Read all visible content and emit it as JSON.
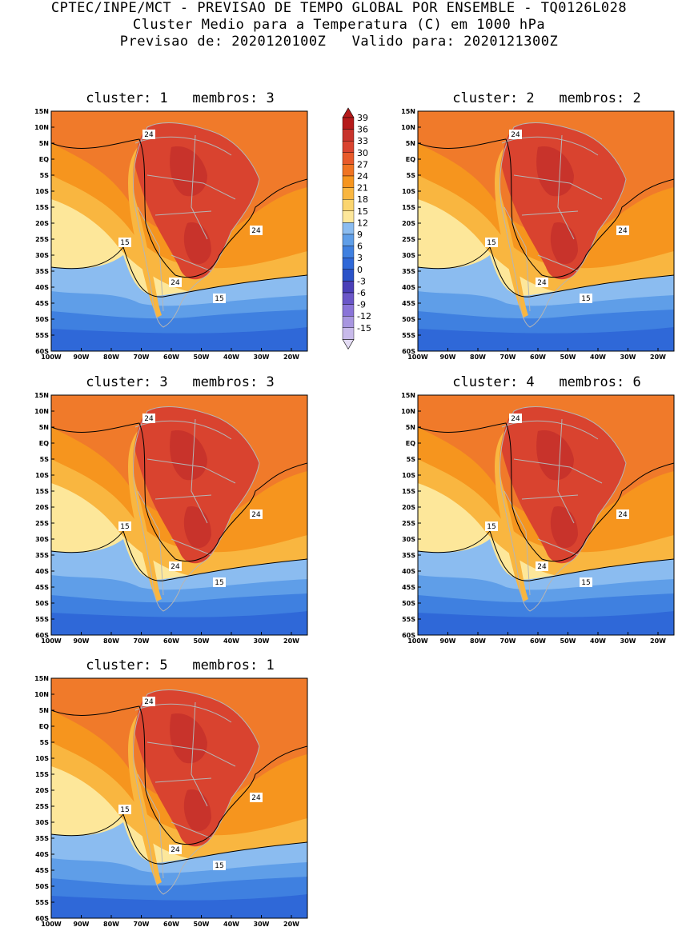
{
  "header": {
    "line1": "CPTEC/INPE/MCT - PREVISAO DE TEMPO GLOBAL POR ENSEMBLE - TQ0126L028",
    "line2": "Cluster Medio para a Temperatura (C) em 1000 hPa",
    "line3": "Previsao de: 2020120100Z   Valido para: 2020121300Z"
  },
  "axes": {
    "lat_labels": [
      "15N",
      "10N",
      "5N",
      "EQ",
      "5S",
      "10S",
      "15S",
      "20S",
      "25S",
      "30S",
      "35S",
      "40S",
      "45S",
      "50S",
      "55S",
      "60S"
    ],
    "lon_labels": [
      "100W",
      "90W",
      "80W",
      "70W",
      "60W",
      "50W",
      "40W",
      "30W",
      "20W"
    ]
  },
  "panels": [
    {
      "title": "cluster: 1   membros: 3",
      "labels": {
        "a": "24",
        "b": "24",
        "c": "15",
        "d": "24",
        "e": "15"
      }
    },
    {
      "title": "cluster: 2   membros: 2",
      "labels": {
        "a": "24",
        "b": "24",
        "c": "15",
        "d": "24",
        "e": "15"
      }
    },
    {
      "title": "cluster: 3   membros: 3",
      "labels": {
        "a": "24",
        "b": "24",
        "c": "15",
        "d": "24",
        "e": "15"
      }
    },
    {
      "title": "cluster: 4   membros: 6",
      "labels": {
        "a": "24",
        "b": "24",
        "c": "15",
        "d": "24",
        "e": "15"
      }
    },
    {
      "title": "cluster: 5   membros: 1",
      "labels": {
        "a": "24",
        "b": "24",
        "c": "15",
        "d": "24",
        "e": "15"
      }
    }
  ],
  "colorbar": {
    "labels": [
      "39",
      "36",
      "33",
      "30",
      "27",
      "24",
      "21",
      "18",
      "15",
      "12",
      "9",
      "6",
      "3",
      "0",
      "-3",
      "-6",
      "-9",
      "-12",
      "-15"
    ],
    "colors": [
      "#b51a1a",
      "#c8332b",
      "#d9432f",
      "#e85a2a",
      "#f07422",
      "#f6951e",
      "#f9b640",
      "#fbd56f",
      "#fde79a",
      "#8bbcf0",
      "#5f9ee8",
      "#3f80e0",
      "#2f68d8",
      "#2a52c8",
      "#4a3fb8",
      "#6a56c8",
      "#8a74d8",
      "#a896e0",
      "#c8baea"
    ]
  },
  "palette": {
    "ocean_warm": "#f07a2a",
    "land_hot": "#d9432f",
    "land_hottest": "#c8332b",
    "subtropical": "#f6951e",
    "mid": "#f9b640",
    "cool": "#fde79a",
    "cold1": "#8bbcf0",
    "cold2": "#5f9ee8",
    "cold3": "#3f80e0",
    "cold4": "#2f68d8",
    "border": "#b5b5b5"
  }
}
